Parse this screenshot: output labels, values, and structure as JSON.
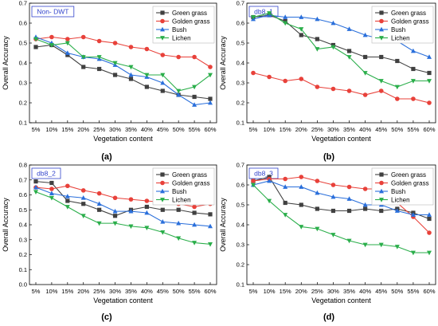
{
  "figure": {
    "colors": {
      "Green grass": "#404040",
      "Golden grass": "#e8413a",
      "Bush": "#2a6fdb",
      "Lichen": "#2aae4a",
      "panel_label": "#3344cc",
      "grid": "#d9d9d9"
    },
    "markers": {
      "Green grass": "square",
      "Golden grass": "circle",
      "Bush": "triangle",
      "Lichen": "triangle-down"
    }
  },
  "chart_data": [
    {
      "type": "line",
      "title": "Non- DWT",
      "caption": "(a)",
      "xlabel": "Vegetation content",
      "ylabel": "Overall Accuracy",
      "categories": [
        "5%",
        "10%",
        "15%",
        "20%",
        "25%",
        "30%",
        "35%",
        "40%",
        "45%",
        "50%",
        "55%",
        "60%"
      ],
      "ylim": [
        0.1,
        0.7
      ],
      "yticks": [
        "0.1",
        "0.2",
        "0.3",
        "0.4",
        "0.5",
        "0.6",
        "0.7"
      ],
      "legend_position": "top-right",
      "grid": false,
      "series": [
        {
          "name": "Green grass",
          "values": [
            0.48,
            0.49,
            0.44,
            0.38,
            0.37,
            0.34,
            0.32,
            0.28,
            0.26,
            0.24,
            0.23,
            0.22
          ]
        },
        {
          "name": "Golden grass",
          "values": [
            0.52,
            0.53,
            0.52,
            0.53,
            0.51,
            0.5,
            0.48,
            0.47,
            0.44,
            0.43,
            0.43,
            0.38
          ]
        },
        {
          "name": "Bush",
          "values": [
            0.53,
            0.5,
            0.45,
            0.43,
            0.42,
            0.39,
            0.34,
            0.33,
            0.3,
            0.24,
            0.19,
            0.2
          ]
        },
        {
          "name": "Lichen",
          "values": [
            0.52,
            0.49,
            0.5,
            0.43,
            0.43,
            0.4,
            0.38,
            0.34,
            0.34,
            0.26,
            0.28,
            0.34
          ]
        }
      ]
    },
    {
      "type": "line",
      "title": "db8_1",
      "caption": "(b)",
      "xlabel": "Vegetation content",
      "ylabel": "Overall Accuracy",
      "categories": [
        "5%",
        "10%",
        "15%",
        "20%",
        "25%",
        "30%",
        "35%",
        "40%",
        "45%",
        "50%",
        "55%",
        "60%"
      ],
      "ylim": [
        0.1,
        0.7
      ],
      "yticks": [
        "0.1",
        "0.2",
        "0.3",
        "0.4",
        "0.5",
        "0.6",
        "0.7"
      ],
      "legend_position": "top-right",
      "grid": false,
      "series": [
        {
          "name": "Green grass",
          "values": [
            0.63,
            0.64,
            0.61,
            0.54,
            0.52,
            0.49,
            0.46,
            0.43,
            0.43,
            0.41,
            0.37,
            0.35
          ]
        },
        {
          "name": "Golden grass",
          "values": [
            0.35,
            0.33,
            0.31,
            0.32,
            0.28,
            0.27,
            0.26,
            0.24,
            0.26,
            0.22,
            0.22,
            0.2
          ]
        },
        {
          "name": "Bush",
          "values": [
            0.62,
            0.64,
            0.63,
            0.63,
            0.62,
            0.6,
            0.57,
            0.54,
            0.52,
            0.51,
            0.46,
            0.43
          ]
        },
        {
          "name": "Lichen",
          "values": [
            0.63,
            0.65,
            0.6,
            0.57,
            0.47,
            0.48,
            0.43,
            0.35,
            0.31,
            0.28,
            0.31,
            0.31
          ]
        }
      ]
    },
    {
      "type": "line",
      "title": "db8_2",
      "caption": "(c)",
      "xlabel": "Vegetation content",
      "ylabel": "Overall Accuracy",
      "categories": [
        "5%",
        "10%",
        "15%",
        "20%",
        "25%",
        "30%",
        "35%",
        "40%",
        "45%",
        "50%",
        "55%",
        "60%"
      ],
      "ylim": [
        0.0,
        0.8
      ],
      "yticks": [
        "0.0",
        "0.1",
        "0.2",
        "0.3",
        "0.4",
        "0.5",
        "0.6",
        "0.7",
        "0.8"
      ],
      "legend_position": "top-right",
      "grid": false,
      "series": [
        {
          "name": "Green grass",
          "values": [
            0.69,
            0.68,
            0.56,
            0.54,
            0.5,
            0.46,
            0.5,
            0.52,
            0.5,
            0.5,
            0.48,
            0.47
          ]
        },
        {
          "name": "Golden grass",
          "values": [
            0.65,
            0.64,
            0.66,
            0.63,
            0.61,
            0.58,
            0.57,
            0.56,
            0.55,
            0.54,
            0.52,
            0.54
          ]
        },
        {
          "name": "Bush",
          "values": [
            0.65,
            0.61,
            0.59,
            0.58,
            0.54,
            0.49,
            0.49,
            0.48,
            0.42,
            0.41,
            0.4,
            0.39
          ]
        },
        {
          "name": "Lichen",
          "values": [
            0.62,
            0.58,
            0.52,
            0.46,
            0.41,
            0.41,
            0.39,
            0.38,
            0.35,
            0.31,
            0.28,
            0.27
          ]
        }
      ]
    },
    {
      "type": "line",
      "title": "db8_3",
      "caption": "(d)",
      "xlabel": "Vegetation content",
      "ylabel": "Overall Accuracy",
      "categories": [
        "5%",
        "10%",
        "15%",
        "20%",
        "25%",
        "30%",
        "35%",
        "40%",
        "45%",
        "50%",
        "55%",
        "60%"
      ],
      "ylim": [
        0.1,
        0.7
      ],
      "yticks": [
        "0.1",
        "0.2",
        "0.3",
        "0.4",
        "0.5",
        "0.6",
        "0.7"
      ],
      "legend_position": "top-right",
      "grid": false,
      "series": [
        {
          "name": "Green grass",
          "values": [
            0.62,
            0.64,
            0.51,
            0.5,
            0.48,
            0.47,
            0.47,
            0.48,
            0.47,
            0.48,
            0.46,
            0.43
          ]
        },
        {
          "name": "Golden grass",
          "values": [
            0.62,
            0.63,
            0.63,
            0.64,
            0.62,
            0.6,
            0.59,
            0.58,
            0.58,
            0.51,
            0.44,
            0.36
          ]
        },
        {
          "name": "Bush",
          "values": [
            0.6,
            0.62,
            0.59,
            0.59,
            0.56,
            0.54,
            0.53,
            0.5,
            0.5,
            0.47,
            0.45,
            0.45
          ]
        },
        {
          "name": "Lichen",
          "values": [
            0.6,
            0.52,
            0.45,
            0.39,
            0.38,
            0.35,
            0.32,
            0.3,
            0.3,
            0.29,
            0.26,
            0.26
          ]
        }
      ]
    }
  ]
}
